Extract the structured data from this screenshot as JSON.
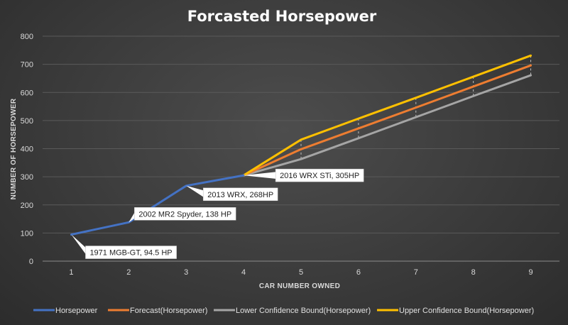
{
  "chart_data": {
    "type": "line",
    "title": "Forcasted Horsepower",
    "xlabel": "CAR NUMBER OWNED",
    "ylabel": "NUMBER OF HORSEPOWER",
    "x": [
      1,
      2,
      3,
      4,
      5,
      6,
      7,
      8,
      9
    ],
    "xlim": [
      1,
      9
    ],
    "ylim": [
      0,
      800
    ],
    "yticks": [
      0,
      100,
      200,
      300,
      400,
      500,
      600,
      700,
      800
    ],
    "grid": "horizontal",
    "legend": "bottom",
    "series": [
      {
        "name": "Horsepower",
        "color": "#4472C4",
        "x": [
          1,
          2,
          3,
          4
        ],
        "values": [
          94.5,
          138,
          268,
          305
        ]
      },
      {
        "name": "Forecast(Horsepower)",
        "color": "#ED7D31",
        "x": [
          4,
          5,
          6,
          7,
          8,
          9
        ],
        "values": [
          305,
          398,
          472,
          546,
          621,
          696
        ]
      },
      {
        "name": "Lower Confidence Bound(Horsepower)",
        "color": "#A5A5A5",
        "x": [
          4,
          5,
          6,
          7,
          8,
          9
        ],
        "values": [
          305,
          363,
          437,
          512,
          587,
          661
        ]
      },
      {
        "name": "Upper Confidence Bound(Horsepower)",
        "color": "#FFC000",
        "x": [
          4,
          5,
          6,
          7,
          8,
          9
        ],
        "values": [
          305,
          432,
          507,
          581,
          656,
          731
        ]
      }
    ],
    "annotations": [
      {
        "text": "1971 MGB-GT, 94.5 HP",
        "x": 1,
        "y": 94.5
      },
      {
        "text": "2002 MR2 Spyder, 138 HP",
        "x": 2,
        "y": 138
      },
      {
        "text": "2013 WRX, 268HP",
        "x": 3,
        "y": 268
      },
      {
        "text": "2016 WRX STi, 305HP",
        "x": 4,
        "y": 305
      }
    ]
  }
}
